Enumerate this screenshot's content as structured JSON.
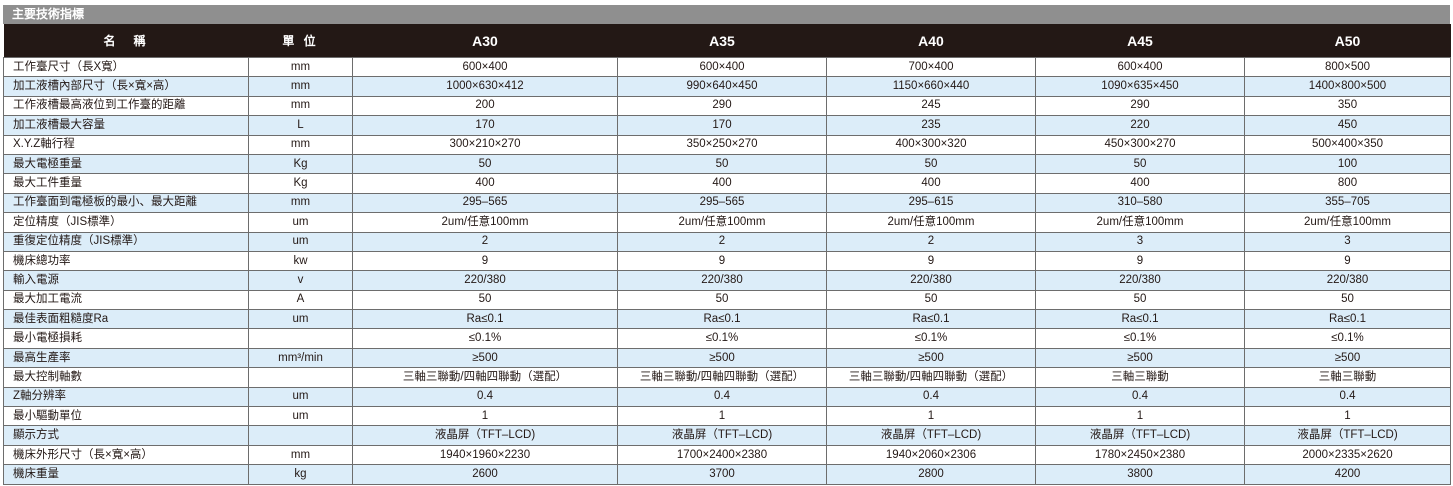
{
  "title": "主要技術指標",
  "colors": {
    "header_bg": "#231815",
    "title_bg": "#8f8f8f",
    "alt_row_bg": "#dcedf9"
  },
  "headers": [
    "名　稱",
    "單 位",
    "A30",
    "A35",
    "A40",
    "A45",
    "A50"
  ],
  "rows": [
    {
      "name": "工作臺尺寸（長X寬）",
      "unit": "mm",
      "values": [
        "600×400",
        "600×400",
        "700×400",
        "600×400",
        "800×500"
      ]
    },
    {
      "name": "加工液槽內部尺寸（長×寬×高）",
      "unit": "mm",
      "values": [
        "1000×630×412",
        "990×640×450",
        "1150×660×440",
        "1090×635×450",
        "1400×800×500"
      ]
    },
    {
      "name": "工作液槽最高液位到工作臺的距離",
      "unit": "mm",
      "values": [
        "200",
        "290",
        "245",
        "290",
        "350"
      ]
    },
    {
      "name": "加工液槽最大容量",
      "unit": "L",
      "values": [
        "170",
        "170",
        "235",
        "220",
        "450"
      ]
    },
    {
      "name": "X.Y.Z軸行程",
      "unit": "mm",
      "values": [
        "300×210×270",
        "350×250×270",
        "400×300×320",
        "450×300×270",
        "500×400×350"
      ]
    },
    {
      "name": "最大電極重量",
      "unit": "Kg",
      "values": [
        "50",
        "50",
        "50",
        "50",
        "100"
      ]
    },
    {
      "name": "最大工件重量",
      "unit": "Kg",
      "values": [
        "400",
        "400",
        "400",
        "400",
        "800"
      ]
    },
    {
      "name": "工作臺面到電極板的最小、最大距離",
      "unit": "mm",
      "values": [
        "295–565",
        "295–565",
        "295–615",
        "310–580",
        "355–705"
      ]
    },
    {
      "name": "定位精度（JIS標準）",
      "unit": "um",
      "values": [
        "2um/任意100mm",
        "2um/任意100mm",
        "2um/任意100mm",
        "2um/任意100mm",
        "2um/任意100mm"
      ]
    },
    {
      "name": "重復定位精度（JIS標準）",
      "unit": "um",
      "values": [
        "2",
        "2",
        "2",
        "3",
        "3"
      ]
    },
    {
      "name": "機床總功率",
      "unit": "kw",
      "values": [
        "9",
        "9",
        "9",
        "9",
        "9"
      ]
    },
    {
      "name": "輸入電源",
      "unit": "v",
      "values": [
        "220/380",
        "220/380",
        "220/380",
        "220/380",
        "220/380"
      ]
    },
    {
      "name": "最大加工電流",
      "unit": "A",
      "values": [
        "50",
        "50",
        "50",
        "50",
        "50"
      ]
    },
    {
      "name": "最佳表面粗糙度Ra",
      "unit": "um",
      "values": [
        "Ra≤0.1",
        "Ra≤0.1",
        "Ra≤0.1",
        "Ra≤0.1",
        "Ra≤0.1"
      ]
    },
    {
      "name": "最小電極損耗",
      "unit": "",
      "values": [
        "≤0.1%",
        "≤0.1%",
        "≤0.1%",
        "≤0.1%",
        "≤0.1%"
      ]
    },
    {
      "name": "最高生產率",
      "unit": "mm³/min",
      "values": [
        "≥500",
        "≥500",
        "≥500",
        "≥500",
        "≥500"
      ]
    },
    {
      "name": "最大控制軸數",
      "unit": "",
      "values": [
        "三軸三聯動/四軸四聯動（選配）",
        "三軸三聯動/四軸四聯動（選配）",
        "三軸三聯動/四軸四聯動（選配）",
        "三軸三聯動",
        "三軸三聯動"
      ]
    },
    {
      "name": "Z軸分辨率",
      "unit": "um",
      "values": [
        "0.4",
        "0.4",
        "0.4",
        "0.4",
        "0.4"
      ]
    },
    {
      "name": "最小驅動單位",
      "unit": "um",
      "values": [
        "1",
        "1",
        "1",
        "1",
        "1"
      ]
    },
    {
      "name": "顯示方式",
      "unit": "",
      "values": [
        "液晶屏（TFT–LCD)",
        "液晶屏（TFT–LCD)",
        "液晶屏（TFT–LCD)",
        "液晶屏（TFT–LCD)",
        "液晶屏（TFT–LCD)"
      ]
    },
    {
      "name": "機床外形尺寸（長×寬×高）",
      "unit": "mm",
      "values": [
        "1940×1960×2230",
        "1700×2400×2380",
        "1940×2060×2306",
        "1780×2450×2380",
        "2000×2335×2620"
      ]
    },
    {
      "name": "機床重量",
      "unit": "kg",
      "values": [
        "2600",
        "3700",
        "2800",
        "3800",
        "4200"
      ]
    }
  ]
}
